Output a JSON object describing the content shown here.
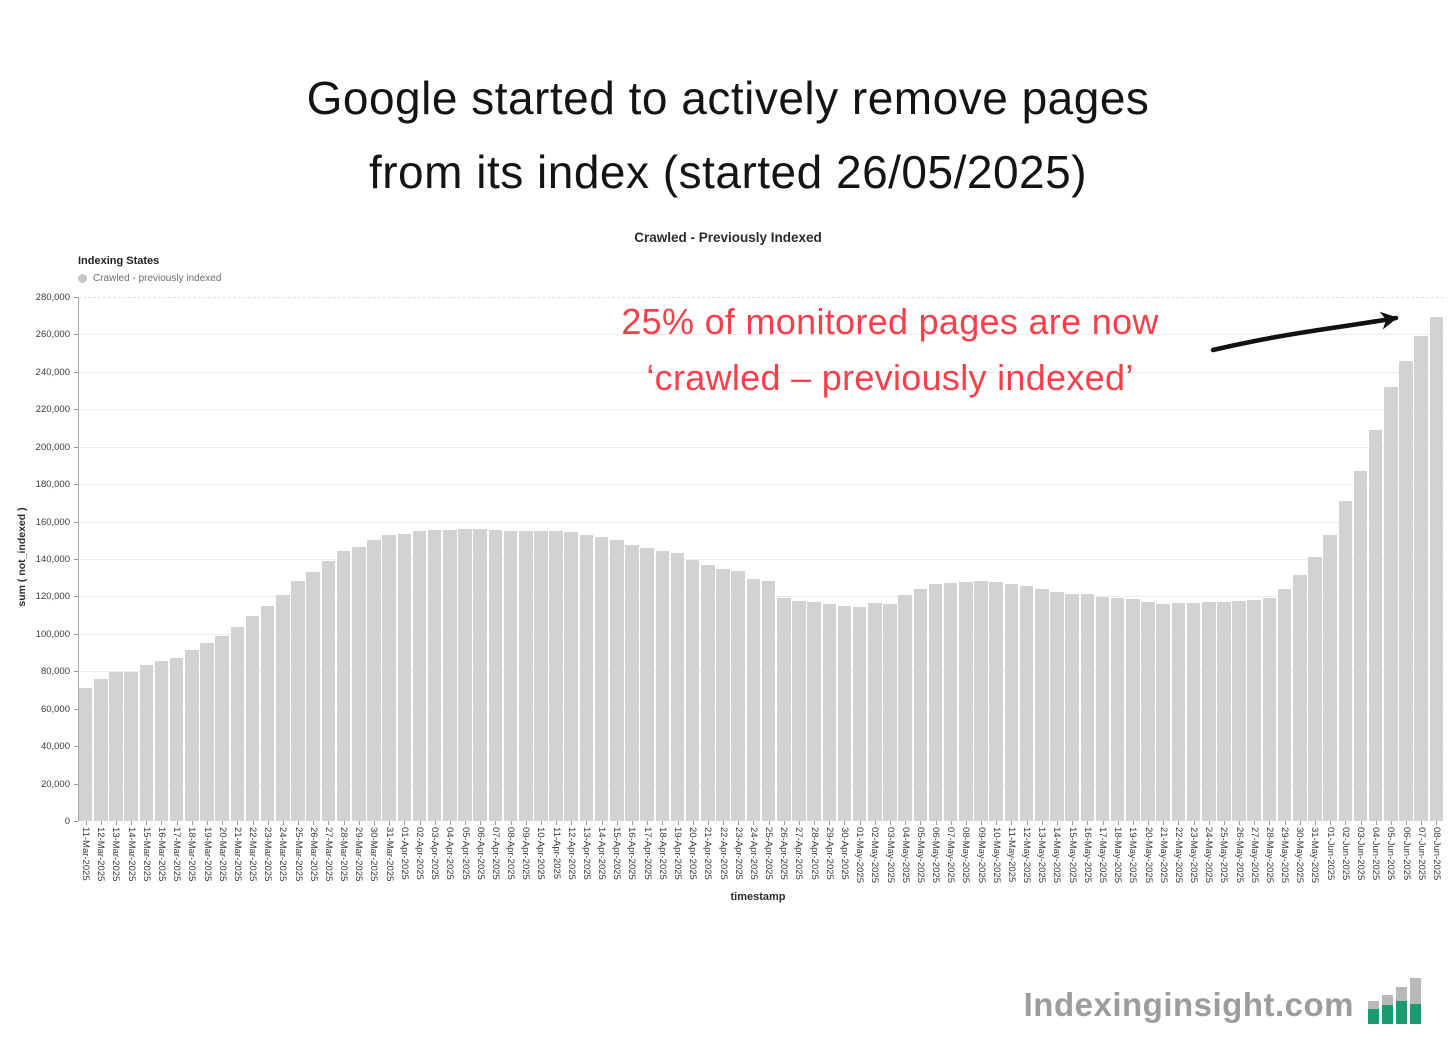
{
  "page": {
    "title_line1": "Google started to actively remove pages",
    "title_line2": "from its index (started 26/05/2025)"
  },
  "chart": {
    "title": "Crawled - Previously Indexed",
    "legend_title": "Indexing States",
    "legend_item": "Crawled - previously indexed",
    "y_axis_title": "sum ( not_indexed )",
    "x_axis_title": "timestamp"
  },
  "annotation": {
    "line1": "25% of monitored pages are now",
    "line2": "‘crawled – previously indexed’"
  },
  "footer": {
    "brand": "Indexinginsight.com"
  },
  "colors": {
    "bar": "#d2d2d2",
    "annotation_red": "#fa3f49",
    "arrow_black": "#111111",
    "brand_gray": "#9c9c9c",
    "logo_green": "#1a9b72",
    "logo_gray": "#b9b9b9"
  },
  "chart_data": {
    "type": "bar",
    "title": "Crawled - Previously Indexed",
    "series_name": "Crawled - previously indexed",
    "xlabel": "timestamp",
    "ylabel": "sum ( not_indexed )",
    "ylim": [
      0,
      280000
    ],
    "ytick_step": 20000,
    "yticks": [
      0,
      20000,
      40000,
      60000,
      80000,
      100000,
      120000,
      140000,
      160000,
      180000,
      200000,
      220000,
      240000,
      260000,
      280000
    ],
    "grid": true,
    "legend_position": "top-left",
    "x": [
      "11-Mar-2025",
      "12-Mar-2025",
      "13-Mar-2025",
      "14-Mar-2025",
      "15-Mar-2025",
      "16-Mar-2025",
      "17-Mar-2025",
      "18-Mar-2025",
      "19-Mar-2025",
      "20-Mar-2025",
      "21-Mar-2025",
      "22-Mar-2025",
      "23-Mar-2025",
      "24-Mar-2025",
      "25-Mar-2025",
      "26-Mar-2025",
      "27-Mar-2025",
      "28-Mar-2025",
      "29-Mar-2025",
      "30-Mar-2025",
      "31-Mar-2025",
      "01-Apr-2025",
      "02-Apr-2025",
      "03-Apr-2025",
      "04-Apr-2025",
      "05-Apr-2025",
      "06-Apr-2025",
      "07-Apr-2025",
      "08-Apr-2025",
      "09-Apr-2025",
      "10-Apr-2025",
      "11-Apr-2025",
      "12-Apr-2025",
      "13-Apr-2025",
      "14-Apr-2025",
      "15-Apr-2025",
      "16-Apr-2025",
      "17-Apr-2025",
      "18-Apr-2025",
      "19-Apr-2025",
      "20-Apr-2025",
      "21-Apr-2025",
      "22-Apr-2025",
      "23-Apr-2025",
      "24-Apr-2025",
      "25-Apr-2025",
      "26-Apr-2025",
      "27-Apr-2025",
      "28-Apr-2025",
      "29-Apr-2025",
      "30-Apr-2025",
      "01-May-2025",
      "02-May-2025",
      "03-May-2025",
      "04-May-2025",
      "05-May-2025",
      "06-May-2025",
      "07-May-2025",
      "08-May-2025",
      "09-May-2025",
      "10-May-2025",
      "11-May-2025",
      "12-May-2025",
      "13-May-2025",
      "14-May-2025",
      "15-May-2025",
      "16-May-2025",
      "17-May-2025",
      "18-May-2025",
      "19-May-2025",
      "20-May-2025",
      "21-May-2025",
      "22-May-2025",
      "23-May-2025",
      "24-May-2025",
      "25-May-2025",
      "26-May-2025",
      "27-May-2025",
      "28-May-2025",
      "29-May-2025",
      "30-May-2025",
      "31-May-2025",
      "01-Jun-2025",
      "02-Jun-2025",
      "03-Jun-2025",
      "04-Jun-2025",
      "05-Jun-2025",
      "06-Jun-2025",
      "07-Jun-2025",
      "08-Jun-2025"
    ],
    "values": [
      71000,
      76000,
      79500,
      79500,
      83500,
      85500,
      87000,
      91500,
      95000,
      99000,
      103500,
      109500,
      115000,
      121000,
      128500,
      133000,
      139000,
      144500,
      146500,
      150000,
      153000,
      153500,
      155000,
      155500,
      155500,
      156000,
      156000,
      155500,
      155000,
      155000,
      155000,
      155000,
      154500,
      153000,
      151500,
      150000,
      147500,
      146000,
      144500,
      143000,
      139500,
      137000,
      134500,
      133500,
      129500,
      128500,
      119000,
      117500,
      117000,
      116000,
      115000,
      114500,
      116500,
      116000,
      121000,
      124000,
      126500,
      127000,
      127500,
      128000,
      127500,
      126500,
      125500,
      124000,
      122500,
      121500,
      121500,
      119500,
      119000,
      118500,
      117000,
      116000,
      116500,
      116500,
      117000,
      117000,
      117500,
      118000,
      119000,
      124000,
      131500,
      141000,
      153000,
      171000,
      187000,
      209000,
      232000,
      246000,
      259000,
      269500
    ]
  }
}
